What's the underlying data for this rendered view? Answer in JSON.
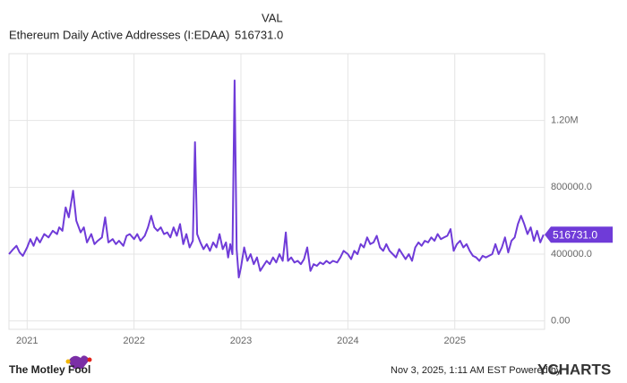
{
  "chart_data": {
    "type": "line",
    "header": "VAL",
    "current_value": 516731,
    "current_value_label": "516731.0",
    "x": [
      2020.83,
      2020.87,
      2020.9,
      2020.93,
      2020.96,
      2021.0,
      2021.03,
      2021.06,
      2021.09,
      2021.12,
      2021.16,
      2021.2,
      2021.24,
      2021.28,
      2021.3,
      2021.33,
      2021.36,
      2021.39,
      2021.43,
      2021.46,
      2021.5,
      2021.53,
      2021.56,
      2021.6,
      2021.63,
      2021.66,
      2021.7,
      2021.73,
      2021.76,
      2021.8,
      2021.83,
      2021.86,
      2021.9,
      2021.93,
      2021.96,
      2022.0,
      2022.03,
      2022.06,
      2022.1,
      2022.13,
      2022.16,
      2022.19,
      2022.22,
      2022.25,
      2022.28,
      2022.31,
      2022.34,
      2022.37,
      2022.4,
      2022.43,
      2022.46,
      2022.49,
      2022.52,
      2022.55,
      2022.57,
      2022.59,
      2022.62,
      2022.65,
      2022.68,
      2022.71,
      2022.74,
      2022.77,
      2022.8,
      2022.83,
      2022.86,
      2022.88,
      2022.9,
      2022.92,
      2022.94,
      2022.96,
      2022.98,
      2023.0,
      2023.03,
      2023.06,
      2023.09,
      2023.12,
      2023.15,
      2023.18,
      2023.21,
      2023.24,
      2023.27,
      2023.3,
      2023.33,
      2023.36,
      2023.39,
      2023.42,
      2023.44,
      2023.47,
      2023.5,
      2023.53,
      2023.56,
      2023.59,
      2023.62,
      2023.65,
      2023.68,
      2023.71,
      2023.74,
      2023.77,
      2023.8,
      2023.83,
      2023.86,
      2023.9,
      2023.93,
      2023.96,
      2024.0,
      2024.03,
      2024.06,
      2024.09,
      2024.12,
      2024.15,
      2024.18,
      2024.21,
      2024.24,
      2024.27,
      2024.3,
      2024.33,
      2024.36,
      2024.39,
      2024.42,
      2024.45,
      2024.48,
      2024.51,
      2024.54,
      2024.57,
      2024.6,
      2024.63,
      2024.66,
      2024.69,
      2024.72,
      2024.75,
      2024.78,
      2024.81,
      2024.84,
      2024.87,
      2024.9,
      2024.93,
      2024.96,
      2024.99,
      2025.02,
      2025.05,
      2025.08,
      2025.11,
      2025.14,
      2025.17,
      2025.2,
      2025.23,
      2025.26,
      2025.29,
      2025.32,
      2025.35,
      2025.38,
      2025.41,
      2025.44,
      2025.47,
      2025.5,
      2025.53,
      2025.56,
      2025.59,
      2025.62,
      2025.65,
      2025.68,
      2025.71,
      2025.74,
      2025.77,
      2025.8,
      2025.83
    ],
    "series": [
      {
        "name": "Ethereum Daily Active Addresses (I:EDAA)",
        "color": "#6f3bd8",
        "values": [
          400000,
          430000,
          450000,
          410000,
          390000,
          440000,
          490000,
          450000,
          500000,
          470000,
          520000,
          500000,
          540000,
          520000,
          560000,
          540000,
          680000,
          620000,
          780000,
          600000,
          530000,
          560000,
          470000,
          520000,
          460000,
          480000,
          500000,
          620000,
          470000,
          490000,
          460000,
          480000,
          450000,
          510000,
          520000,
          490000,
          520000,
          480000,
          510000,
          560000,
          630000,
          560000,
          540000,
          560000,
          520000,
          530000,
          500000,
          560000,
          510000,
          580000,
          460000,
          520000,
          440000,
          480000,
          1070000,
          520000,
          470000,
          430000,
          460000,
          420000,
          470000,
          440000,
          520000,
          430000,
          470000,
          380000,
          460000,
          400000,
          1440000,
          430000,
          260000,
          320000,
          440000,
          360000,
          400000,
          340000,
          380000,
          300000,
          330000,
          360000,
          340000,
          380000,
          350000,
          400000,
          360000,
          530000,
          360000,
          380000,
          350000,
          360000,
          340000,
          370000,
          440000,
          300000,
          340000,
          330000,
          350000,
          340000,
          360000,
          345000,
          360000,
          350000,
          380000,
          420000,
          400000,
          370000,
          420000,
          400000,
          460000,
          440000,
          500000,
          460000,
          470000,
          510000,
          440000,
          420000,
          460000,
          420000,
          400000,
          380000,
          430000,
          400000,
          370000,
          400000,
          360000,
          440000,
          470000,
          450000,
          480000,
          470000,
          500000,
          480000,
          520000,
          490000,
          500000,
          510000,
          550000,
          420000,
          460000,
          480000,
          440000,
          460000,
          420000,
          390000,
          380000,
          360000,
          390000,
          380000,
          390000,
          400000,
          460000,
          400000,
          440000,
          500000,
          410000,
          480000,
          500000,
          580000,
          630000,
          580000,
          520000,
          560000,
          480000,
          540000,
          470000,
          516731
        ]
      }
    ],
    "xlim": [
      2020.83,
      2025.84
    ],
    "xticks": [
      2021,
      2022,
      2023,
      2024,
      2025
    ],
    "ylim": [
      -50000,
      1600000
    ],
    "yticks": [
      {
        "value": 0,
        "label": "0.00"
      },
      {
        "value": 400000,
        "label": "400000.0"
      },
      {
        "value": 800000,
        "label": "800000.0"
      },
      {
        "value": 1200000,
        "label": "1.20M"
      }
    ],
    "grid": true
  },
  "footer": {
    "timestamp": "Nov 3, 2025, 1:11 AM EST Powered by",
    "brand": "YCHARTS",
    "source": "The Motley Fool"
  }
}
